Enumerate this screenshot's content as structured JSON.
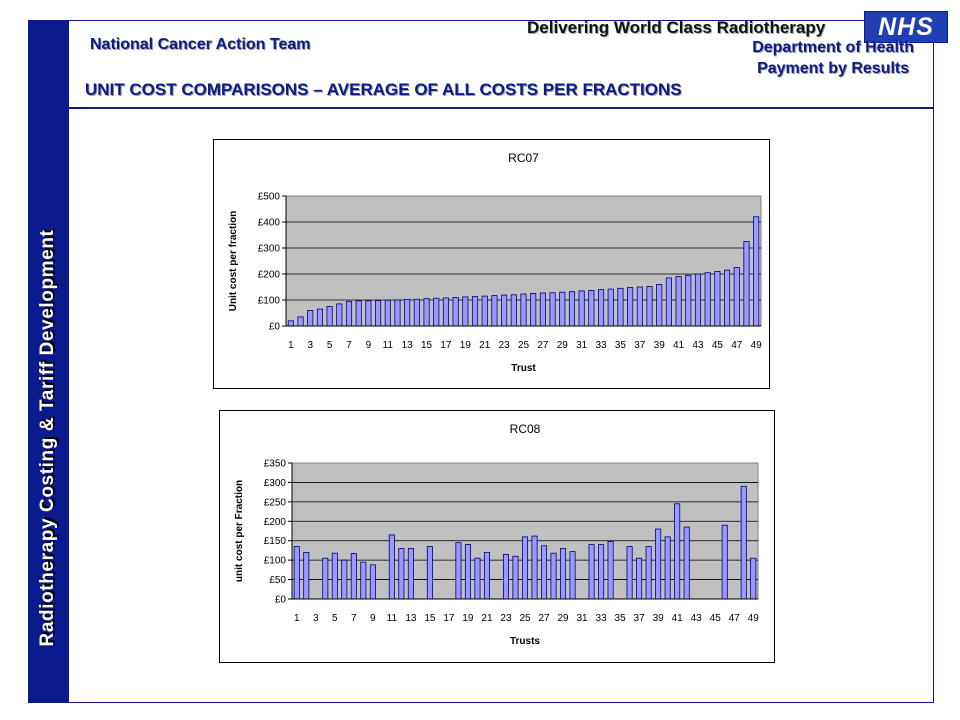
{
  "header": {
    "team": "National Cancer Action Team",
    "tagline": "Delivering World Class Radiotherapy",
    "department": "Department of Health",
    "programme": "Payment by Results",
    "title": "UNIT COST COMPARISONS – AVERAGE OF ALL COSTS PER FRACTIONS",
    "logo_text": "NHS"
  },
  "sidebar": {
    "text": "Radiotherapy Costing & Tariff Development"
  },
  "colors": {
    "brand": "#0b1a8c",
    "plot_bg": "#c0c0c0",
    "bar_fill": "#9999ff",
    "bar_stroke": "#000080"
  },
  "chart_data": [
    {
      "type": "bar",
      "title": "RC07",
      "xlabel": "Trust",
      "ylabel": "Unit cost per fraction",
      "ylim": [
        0,
        500
      ],
      "yticks": [
        "£0",
        "£100",
        "£200",
        "£300",
        "£400",
        "£500"
      ],
      "ytick_values": [
        0,
        100,
        200,
        300,
        400,
        500
      ],
      "xtick_labels": [
        "1",
        "3",
        "5",
        "7",
        "9",
        "11",
        "13",
        "15",
        "17",
        "19",
        "21",
        "23",
        "25",
        "27",
        "29",
        "31",
        "33",
        "35",
        "37",
        "39",
        "41",
        "43",
        "45",
        "47",
        "49"
      ],
      "grid": true,
      "categories": [
        "1",
        "2",
        "3",
        "4",
        "5",
        "6",
        "7",
        "8",
        "9",
        "10",
        "11",
        "12",
        "13",
        "14",
        "15",
        "16",
        "17",
        "18",
        "19",
        "20",
        "21",
        "22",
        "23",
        "24",
        "25",
        "26",
        "27",
        "28",
        "29",
        "30",
        "31",
        "32",
        "33",
        "34",
        "35",
        "36",
        "37",
        "38",
        "39",
        "40",
        "41",
        "42",
        "43",
        "44",
        "45",
        "46",
        "47",
        "48",
        "49"
      ],
      "values": [
        20,
        35,
        60,
        65,
        75,
        85,
        95,
        97,
        97,
        98,
        99,
        100,
        102,
        103,
        105,
        107,
        108,
        110,
        112,
        113,
        115,
        117,
        119,
        120,
        123,
        125,
        127,
        128,
        130,
        132,
        135,
        137,
        140,
        142,
        145,
        148,
        150,
        152,
        160,
        185,
        190,
        195,
        200,
        205,
        210,
        215,
        225,
        325,
        420
      ]
    },
    {
      "type": "bar",
      "title": "RC08",
      "xlabel": "Trusts",
      "ylabel": "unit cost per Fraction",
      "ylim": [
        0,
        350
      ],
      "yticks": [
        "£0",
        "£50",
        "£100",
        "£150",
        "£200",
        "£250",
        "£300",
        "£350"
      ],
      "ytick_values": [
        0,
        50,
        100,
        150,
        200,
        250,
        300,
        350
      ],
      "xtick_labels": [
        "1",
        "3",
        "5",
        "7",
        "9",
        "11",
        "13",
        "15",
        "17",
        "19",
        "21",
        "23",
        "25",
        "27",
        "29",
        "31",
        "33",
        "35",
        "37",
        "39",
        "41",
        "43",
        "45",
        "47",
        "49"
      ],
      "grid": true,
      "categories": [
        "1",
        "2",
        "3",
        "4",
        "5",
        "6",
        "7",
        "8",
        "9",
        "10",
        "11",
        "12",
        "13",
        "14",
        "15",
        "16",
        "17",
        "18",
        "19",
        "20",
        "21",
        "22",
        "23",
        "24",
        "25",
        "26",
        "27",
        "28",
        "29",
        "30",
        "31",
        "32",
        "33",
        "34",
        "35",
        "36",
        "37",
        "38",
        "39",
        "40",
        "41",
        "42",
        "43",
        "44",
        "45",
        "46",
        "47",
        "48",
        "49"
      ],
      "values": [
        135,
        120,
        0,
        105,
        118,
        100,
        117,
        95,
        88,
        0,
        165,
        130,
        130,
        0,
        135,
        0,
        0,
        145,
        140,
        105,
        120,
        0,
        115,
        110,
        160,
        162,
        137,
        118,
        130,
        122,
        0,
        140,
        140,
        148,
        0,
        135,
        105,
        135,
        180,
        160,
        245,
        185,
        0,
        0,
        0,
        190,
        0,
        290,
        105
      ]
    }
  ]
}
